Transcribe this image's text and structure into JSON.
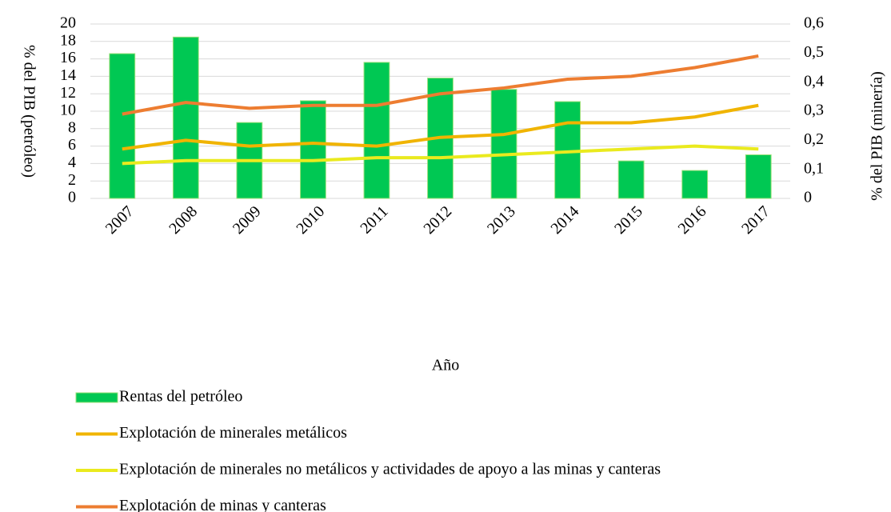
{
  "chart_data": {
    "type": "bar-line",
    "categories": [
      "2007",
      "2008",
      "2009",
      "2010",
      "2011",
      "2012",
      "2013",
      "2014",
      "2015",
      "2016",
      "2017"
    ],
    "series": [
      {
        "name": "Rentas del petróleo",
        "type": "bar",
        "axis": "y",
        "color": "#00c853",
        "values": [
          16.6,
          18.5,
          8.7,
          11.2,
          15.6,
          13.8,
          12.5,
          11.1,
          4.3,
          3.2,
          5.0
        ]
      },
      {
        "name": "Explotación de minerales metálicos",
        "type": "line",
        "axis": "y2",
        "color": "#f0b400",
        "values": [
          0.17,
          0.2,
          0.18,
          0.19,
          0.18,
          0.21,
          0.22,
          0.26,
          0.26,
          0.28,
          0.32
        ]
      },
      {
        "name": "Explotación de minerales no metálicos y actividades de apoyo a las minas y canteras",
        "type": "line",
        "axis": "y2",
        "color": "#eaea1e",
        "values": [
          0.12,
          0.13,
          0.13,
          0.13,
          0.14,
          0.14,
          0.15,
          0.16,
          0.17,
          0.18,
          0.17
        ]
      },
      {
        "name": "Explotación de minas y canteras",
        "type": "line",
        "axis": "y2",
        "color": "#ed7d31",
        "values": [
          0.29,
          0.33,
          0.31,
          0.32,
          0.32,
          0.36,
          0.38,
          0.41,
          0.42,
          0.45,
          0.49
        ]
      }
    ],
    "xlabel": "Año",
    "ylabel": "% del PIB (petróleo)",
    "y2label": "% del PIB (minería)",
    "ylim": [
      0,
      20
    ],
    "yticks": [
      0,
      2,
      4,
      6,
      8,
      10,
      12,
      14,
      16,
      18,
      20
    ],
    "y2lim": [
      0,
      0.6
    ],
    "y2ticks": [
      0,
      {
        "value": 0.1,
        "label": "0,1"
      },
      {
        "value": 0.2,
        "label": "0,2"
      },
      {
        "value": 0.3,
        "label": "0,3"
      },
      {
        "value": 0.4,
        "label": "0,4"
      },
      {
        "value": 0.5,
        "label": "0,5"
      },
      {
        "value": 0.6,
        "label": "0,6"
      }
    ],
    "grid": true,
    "legend": "bottom"
  }
}
